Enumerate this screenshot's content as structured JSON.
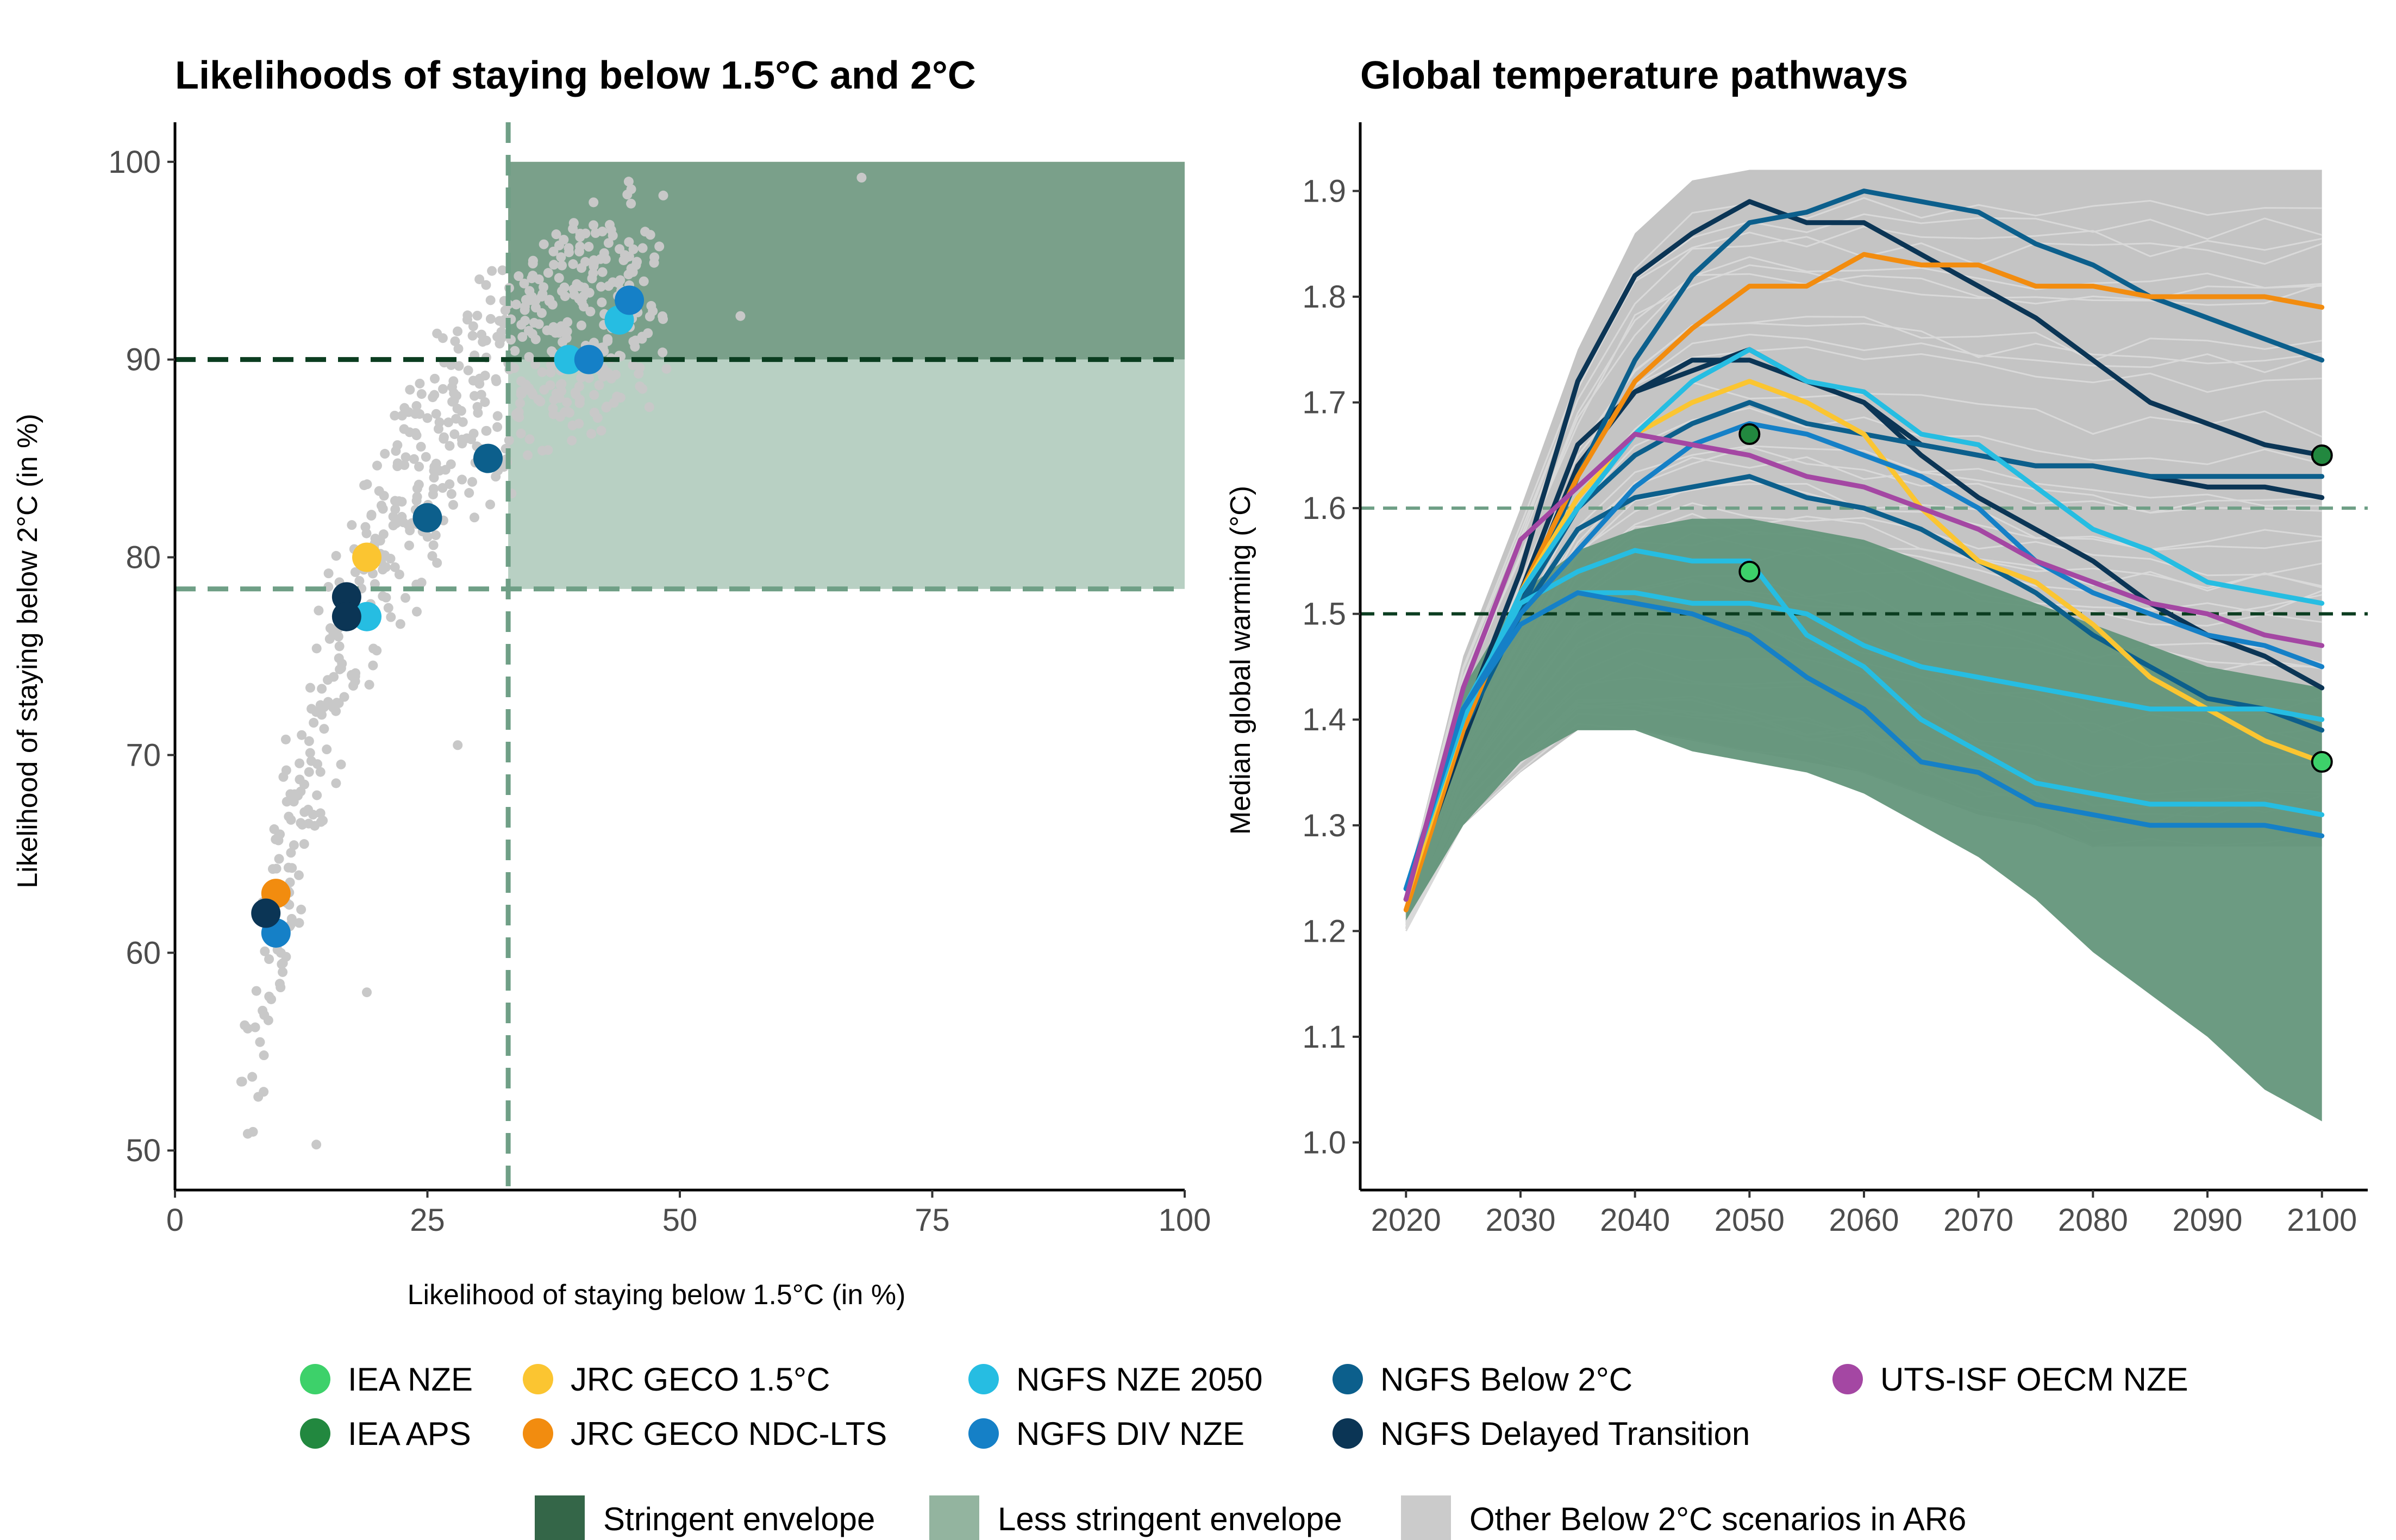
{
  "colors": {
    "stringent": "#2e6a48",
    "less_stringent": "#8fb4a0",
    "other": "#c8c8c8",
    "line_15": "#0b3d20",
    "line_16": "#6f9f86",
    "IEA NZE": "#3dd16a",
    "IEA APS": "#22883f",
    "JRC GECO 1.5°C": "#fbc531",
    "JRC GECO NDC-LTS": "#f28c0f",
    "NGFS NZE 2050": "#26bde2",
    "NGFS DIV NZE": "#1580c7",
    "NGFS Below 2°C": "#0c5f8c",
    "NGFS Delayed Transition": "#0b3555",
    "UTS-ISF OECM NZE": "#a447a3"
  },
  "legend": {
    "scenarios": [
      "IEA NZE",
      "JRC GECO 1.5°C",
      "NGFS NZE 2050",
      "NGFS Below 2°C",
      "UTS-ISF OECM NZE",
      "IEA APS",
      "JRC GECO NDC-LTS",
      "NGFS DIV NZE",
      "NGFS Delayed Transition"
    ],
    "envelopes": [
      "Stringent envelope",
      "Less stringent envelope",
      "Other Below 2°C scenarios in AR6"
    ]
  },
  "chart_data": [
    {
      "type": "scatter",
      "title": "Likelihoods of staying below 1.5°C and 2°C",
      "xlabel": "Likelihood of staying below 1.5°C (in %)",
      "ylabel": "Likelihood of staying below 2°C (in %)",
      "xlim": [
        0,
        100
      ],
      "ylim": [
        48,
        102
      ],
      "xticks": [
        0,
        25,
        50,
        75,
        100
      ],
      "yticks": [
        50,
        60,
        70,
        80,
        90,
        100
      ],
      "grid": false,
      "thresholds": {
        "x_1_5": 33,
        "y_2_stringent": 90,
        "y_2_less": 78.4
      },
      "envelopes": [
        {
          "name": "Stringent envelope",
          "x": [
            33,
            100
          ],
          "y": [
            90,
            100
          ]
        },
        {
          "name": "Less stringent envelope",
          "x": [
            33,
            100
          ],
          "y": [
            78.4,
            90
          ]
        }
      ],
      "highlight_points": [
        {
          "series": "JRC GECO 1.5°C",
          "x": 19,
          "y": 80
        },
        {
          "series": "JRC GECO NDC-LTS",
          "x": 10,
          "y": 63
        },
        {
          "series": "NGFS NZE 2050",
          "x": 39,
          "y": 90
        },
        {
          "series": "NGFS NZE 2050",
          "x": 44,
          "y": 92
        },
        {
          "series": "NGFS NZE 2050",
          "x": 19,
          "y": 77
        },
        {
          "series": "NGFS DIV NZE",
          "x": 41,
          "y": 90
        },
        {
          "series": "NGFS DIV NZE",
          "x": 45,
          "y": 93
        },
        {
          "series": "NGFS DIV NZE",
          "x": 10,
          "y": 61
        },
        {
          "series": "NGFS Below 2°C",
          "x": 31,
          "y": 85
        },
        {
          "series": "NGFS Below 2°C",
          "x": 25,
          "y": 82
        },
        {
          "series": "NGFS Delayed Transition",
          "x": 17,
          "y": 78
        },
        {
          "series": "NGFS Delayed Transition",
          "x": 17,
          "y": 77
        },
        {
          "series": "NGFS Delayed Transition",
          "x": 9,
          "y": 62
        }
      ],
      "other_scenarios_note": "Other Below 2°C scenarios in AR6"
    },
    {
      "type": "line",
      "title": "Global temperature pathways",
      "xlabel": "",
      "ylabel": "Median global warming (°C)",
      "xlim": [
        2016,
        2104
      ],
      "ylim": [
        0.955,
        1.965
      ],
      "xticks": [
        2020,
        2030,
        2040,
        2050,
        2060,
        2070,
        2080,
        2090,
        2100
      ],
      "yticks": [
        1.0,
        1.1,
        1.2,
        1.3,
        1.4,
        1.5,
        1.6,
        1.7,
        1.8,
        1.9
      ],
      "grid": false,
      "reference_lines": [
        {
          "y": 1.5,
          "style": "dark"
        },
        {
          "y": 1.6,
          "style": "light"
        }
      ],
      "x": [
        2020,
        2025,
        2030,
        2035,
        2040,
        2045,
        2050,
        2055,
        2060,
        2065,
        2070,
        2075,
        2080,
        2085,
        2090,
        2095,
        2100
      ],
      "stringent_envelope": {
        "upper": [
          1.23,
          1.43,
          1.52,
          1.56,
          1.58,
          1.59,
          1.59,
          1.58,
          1.57,
          1.55,
          1.53,
          1.51,
          1.49,
          1.47,
          1.45,
          1.44,
          1.43
        ],
        "lower": [
          1.21,
          1.3,
          1.36,
          1.39,
          1.39,
          1.37,
          1.36,
          1.35,
          1.33,
          1.3,
          1.27,
          1.23,
          1.18,
          1.14,
          1.1,
          1.05,
          1.02
        ]
      },
      "other_envelope": {
        "upper": [
          1.24,
          1.46,
          1.6,
          1.75,
          1.86,
          1.91,
          1.92,
          1.92,
          1.92,
          1.92,
          1.92,
          1.92,
          1.92,
          1.92,
          1.92,
          1.92,
          1.92
        ],
        "lower": [
          1.2,
          1.3,
          1.35,
          1.39,
          1.39,
          1.38,
          1.37,
          1.36,
          1.35,
          1.33,
          1.31,
          1.3,
          1.28,
          1.28,
          1.28,
          1.28,
          1.28
        ]
      },
      "series": [
        {
          "name": "NGFS Delayed Transition",
          "values": [
            1.23,
            1.4,
            1.54,
            1.72,
            1.82,
            1.86,
            1.89,
            1.87,
            1.87,
            1.84,
            1.81,
            1.78,
            1.74,
            1.7,
            1.68,
            1.66,
            1.65
          ]
        },
        {
          "name": "NGFS Delayed Transition",
          "values": [
            1.23,
            1.38,
            1.52,
            1.66,
            1.71,
            1.73,
            1.75,
            1.72,
            1.7,
            1.66,
            1.65,
            1.64,
            1.64,
            1.63,
            1.62,
            1.62,
            1.61
          ]
        },
        {
          "name": "NGFS Delayed Transition",
          "values": [
            1.23,
            1.39,
            1.51,
            1.64,
            1.71,
            1.74,
            1.74,
            1.72,
            1.7,
            1.65,
            1.61,
            1.58,
            1.55,
            1.51,
            1.48,
            1.46,
            1.43
          ]
        },
        {
          "name": "NGFS Below 2°C",
          "values": [
            1.23,
            1.39,
            1.5,
            1.63,
            1.74,
            1.82,
            1.87,
            1.88,
            1.9,
            1.89,
            1.88,
            1.85,
            1.83,
            1.8,
            1.78,
            1.76,
            1.74
          ]
        },
        {
          "name": "NGFS Below 2°C",
          "values": [
            1.23,
            1.39,
            1.51,
            1.6,
            1.65,
            1.68,
            1.7,
            1.68,
            1.67,
            1.66,
            1.65,
            1.64,
            1.64,
            1.63,
            1.63,
            1.63,
            1.63
          ]
        },
        {
          "name": "NGFS Below 2°C",
          "values": [
            1.23,
            1.39,
            1.5,
            1.58,
            1.61,
            1.62,
            1.63,
            1.61,
            1.6,
            1.58,
            1.55,
            1.52,
            1.48,
            1.45,
            1.42,
            1.41,
            1.39
          ]
        },
        {
          "name": "JRC GECO NDC-LTS",
          "values": [
            1.22,
            1.39,
            1.52,
            1.63,
            1.72,
            1.77,
            1.81,
            1.81,
            1.84,
            1.83,
            1.83,
            1.81,
            1.81,
            1.8,
            1.8,
            1.8,
            1.79
          ]
        },
        {
          "name": "JRC GECO 1.5°C",
          "values": [
            1.23,
            1.4,
            1.52,
            1.61,
            1.67,
            1.7,
            1.72,
            1.7,
            1.67,
            1.6,
            1.55,
            1.53,
            1.49,
            1.44,
            1.41,
            1.38,
            1.36
          ]
        },
        {
          "name": "NGFS NZE 2050",
          "values": [
            1.24,
            1.4,
            1.52,
            1.6,
            1.67,
            1.72,
            1.75,
            1.72,
            1.71,
            1.67,
            1.66,
            1.62,
            1.58,
            1.56,
            1.53,
            1.52,
            1.51
          ]
        },
        {
          "name": "NGFS NZE 2050",
          "values": [
            1.24,
            1.41,
            1.51,
            1.54,
            1.56,
            1.55,
            1.55,
            1.48,
            1.45,
            1.4,
            1.37,
            1.34,
            1.33,
            1.32,
            1.32,
            1.32,
            1.31
          ]
        },
        {
          "name": "NGFS NZE 2050",
          "values": [
            1.24,
            1.41,
            1.49,
            1.52,
            1.52,
            1.51,
            1.51,
            1.5,
            1.47,
            1.45,
            1.44,
            1.43,
            1.42,
            1.41,
            1.41,
            1.41,
            1.4
          ]
        },
        {
          "name": "NGFS DIV NZE",
          "values": [
            1.24,
            1.41,
            1.5,
            1.56,
            1.62,
            1.66,
            1.68,
            1.67,
            1.65,
            1.63,
            1.6,
            1.55,
            1.52,
            1.5,
            1.48,
            1.47,
            1.45
          ]
        },
        {
          "name": "NGFS DIV NZE",
          "values": [
            1.24,
            1.41,
            1.49,
            1.52,
            1.51,
            1.5,
            1.48,
            1.44,
            1.41,
            1.36,
            1.35,
            1.32,
            1.31,
            1.3,
            1.3,
            1.3,
            1.29
          ]
        },
        {
          "name": "UTS-ISF OECM NZE",
          "values": [
            1.23,
            1.43,
            1.57,
            1.62,
            1.67,
            1.66,
            1.65,
            1.63,
            1.62,
            1.6,
            1.58,
            1.55,
            1.53,
            1.51,
            1.5,
            1.48,
            1.47
          ]
        }
      ],
      "markers": [
        {
          "series": "IEA APS",
          "x": 2050,
          "y": 1.67
        },
        {
          "series": "IEA APS",
          "x": 2100,
          "y": 1.65
        },
        {
          "series": "IEA NZE",
          "x": 2050,
          "y": 1.54
        },
        {
          "series": "IEA NZE",
          "x": 2100,
          "y": 1.36
        }
      ]
    }
  ]
}
